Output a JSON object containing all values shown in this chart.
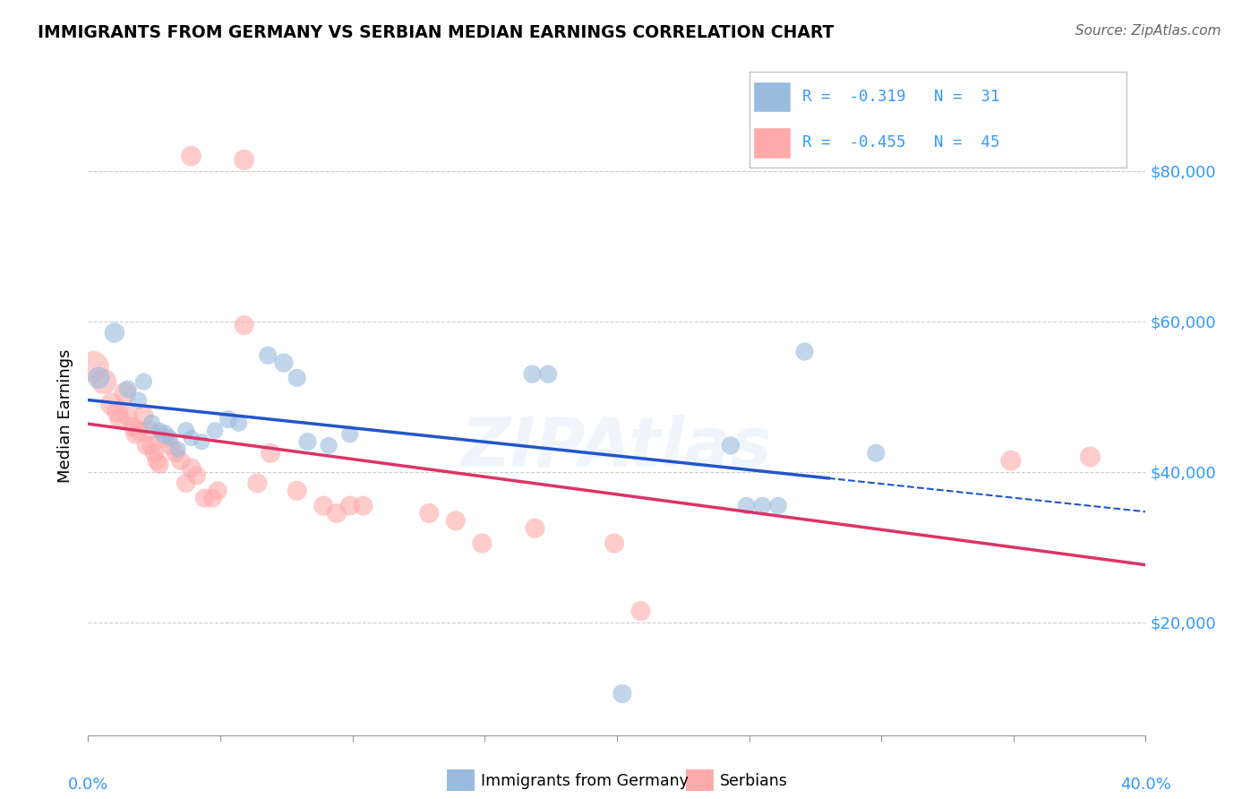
{
  "title": "IMMIGRANTS FROM GERMANY VS SERBIAN MEDIAN EARNINGS CORRELATION CHART",
  "source": "Source: ZipAtlas.com",
  "ylabel": "Median Earnings",
  "y_ticks": [
    20000,
    40000,
    60000,
    80000
  ],
  "y_tick_labels": [
    "$20,000",
    "$40,000",
    "$60,000",
    "$80,000"
  ],
  "xlim": [
    0.0,
    0.4
  ],
  "ylim": [
    5000,
    90000
  ],
  "legend_r_blue": "-0.319",
  "legend_n_blue": "31",
  "legend_r_pink": "-0.455",
  "legend_n_pink": "45",
  "watermark": "ZIPAtlas",
  "blue_color": "#99bbdd",
  "pink_color": "#ffaaaa",
  "blue_line_color": "#2255cc",
  "pink_line_color": "#dd3366",
  "blue_points": [
    [
      0.004,
      52500,
      300
    ],
    [
      0.01,
      58500,
      250
    ],
    [
      0.015,
      51000,
      200
    ],
    [
      0.019,
      49500,
      180
    ],
    [
      0.021,
      52000,
      180
    ],
    [
      0.024,
      46500,
      180
    ],
    [
      0.027,
      45500,
      160
    ],
    [
      0.029,
      45000,
      220
    ],
    [
      0.031,
      44500,
      160
    ],
    [
      0.034,
      43000,
      160
    ],
    [
      0.037,
      45500,
      180
    ],
    [
      0.039,
      44500,
      160
    ],
    [
      0.043,
      44000,
      160
    ],
    [
      0.048,
      45500,
      170
    ],
    [
      0.053,
      47000,
      200
    ],
    [
      0.057,
      46500,
      180
    ],
    [
      0.068,
      55500,
      200
    ],
    [
      0.074,
      54500,
      220
    ],
    [
      0.079,
      52500,
      200
    ],
    [
      0.083,
      44000,
      200
    ],
    [
      0.091,
      43500,
      180
    ],
    [
      0.099,
      45000,
      180
    ],
    [
      0.168,
      53000,
      200
    ],
    [
      0.174,
      53000,
      200
    ],
    [
      0.243,
      43500,
      200
    ],
    [
      0.249,
      35500,
      190
    ],
    [
      0.255,
      35500,
      190
    ],
    [
      0.261,
      35500,
      190
    ],
    [
      0.271,
      56000,
      200
    ],
    [
      0.298,
      42500,
      200
    ],
    [
      0.202,
      10500,
      220
    ]
  ],
  "pink_points": [
    [
      0.002,
      54000,
      600
    ],
    [
      0.006,
      52000,
      400
    ],
    [
      0.009,
      49000,
      330
    ],
    [
      0.011,
      48000,
      280
    ],
    [
      0.012,
      47000,
      260
    ],
    [
      0.014,
      50500,
      300
    ],
    [
      0.015,
      47500,
      260
    ],
    [
      0.017,
      46000,
      240
    ],
    [
      0.018,
      45000,
      240
    ],
    [
      0.019,
      45500,
      240
    ],
    [
      0.021,
      47500,
      240
    ],
    [
      0.022,
      43500,
      220
    ],
    [
      0.023,
      45500,
      240
    ],
    [
      0.024,
      43500,
      220
    ],
    [
      0.025,
      42500,
      220
    ],
    [
      0.026,
      41500,
      220
    ],
    [
      0.027,
      41000,
      220
    ],
    [
      0.029,
      44500,
      240
    ],
    [
      0.031,
      43500,
      220
    ],
    [
      0.033,
      42500,
      220
    ],
    [
      0.035,
      41500,
      220
    ],
    [
      0.037,
      38500,
      220
    ],
    [
      0.039,
      40500,
      240
    ],
    [
      0.041,
      39500,
      220
    ],
    [
      0.044,
      36500,
      220
    ],
    [
      0.047,
      36500,
      220
    ],
    [
      0.049,
      37500,
      220
    ],
    [
      0.059,
      59500,
      240
    ],
    [
      0.064,
      38500,
      240
    ],
    [
      0.069,
      42500,
      240
    ],
    [
      0.079,
      37500,
      240
    ],
    [
      0.089,
      35500,
      240
    ],
    [
      0.094,
      34500,
      240
    ],
    [
      0.099,
      35500,
      240
    ],
    [
      0.104,
      35500,
      240
    ],
    [
      0.129,
      34500,
      240
    ],
    [
      0.139,
      33500,
      240
    ],
    [
      0.169,
      32500,
      240
    ],
    [
      0.199,
      30500,
      240
    ],
    [
      0.059,
      81500,
      260
    ],
    [
      0.039,
      82000,
      260
    ],
    [
      0.209,
      21500,
      240
    ],
    [
      0.349,
      41500,
      260
    ],
    [
      0.379,
      42000,
      260
    ],
    [
      0.149,
      30500,
      240
    ]
  ]
}
